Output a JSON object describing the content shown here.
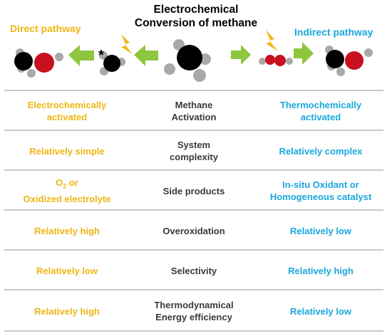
{
  "title": {
    "line1": "Electrochemical",
    "line2": "Conversion of methane"
  },
  "pathways": {
    "direct": "Direct pathway",
    "indirect": "Indirect pathway"
  },
  "radical_mark": "*",
  "colors": {
    "direct": "#f0b514",
    "indirect": "#1aa7de",
    "arrow": "#8dc63f",
    "carbon": "#000000",
    "oxygen": "#c8101e",
    "hydrogen": "#a9a9a9",
    "lightning": "#f5b41a"
  },
  "rows": [
    {
      "left": "Electrochemically\nactivated",
      "middle": "Methane\nActivation",
      "right": "Thermochemically\nactivated"
    },
    {
      "left": "Relatively simple",
      "middle": "System\ncomplexity",
      "right": "Relatively complex"
    },
    {
      "left_pre": "O",
      "left_sub": "2",
      "left_post": " or\nOxidized electrolyte",
      "middle": "Side products",
      "right": "In-situ Oxidant or\nHomogeneous catalyst"
    },
    {
      "left": "Relatively high",
      "middle": "Overoxidation",
      "right": "Relatively low"
    },
    {
      "left": "Relatively low",
      "middle": "Selectivity",
      "right": "Relatively high"
    },
    {
      "left": "Relatively high",
      "middle": "Thermodynamical\nEnergy efficiency",
      "right": "Relatively low"
    }
  ]
}
